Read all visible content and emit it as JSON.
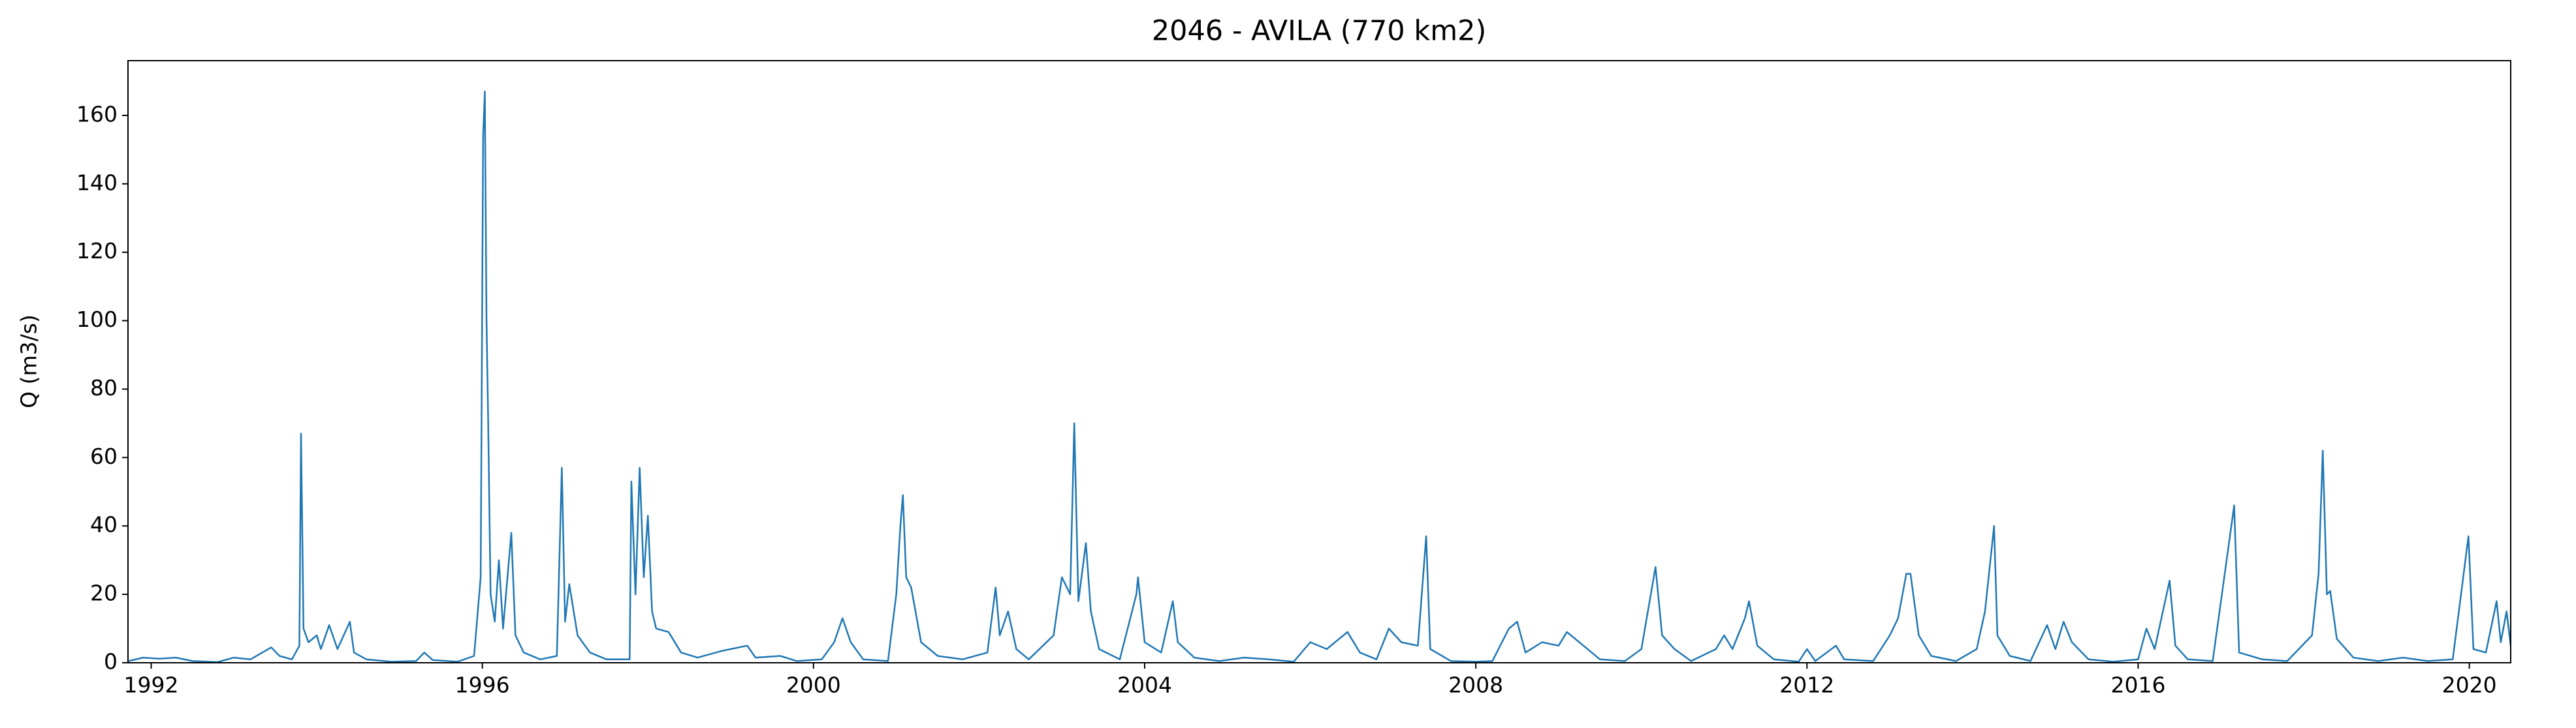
{
  "chart_data": {
    "type": "line",
    "title": "2046 - AVILA (770 km2)",
    "y_label": "Q (m3/s)",
    "color": "#1f77b4",
    "grid": false,
    "xlim": [
      1991.72,
      2020.5
    ],
    "xticks": [
      1992,
      1996,
      2000,
      2004,
      2008,
      2012,
      2016,
      2020
    ],
    "ylim": [
      0,
      176
    ],
    "yticks": [
      0,
      20,
      40,
      60,
      80,
      100,
      120,
      140,
      160
    ],
    "x": [
      1991.73,
      1991.9,
      1992.1,
      1992.3,
      1992.5,
      1992.8,
      1993.0,
      1993.2,
      1993.45,
      1993.55,
      1993.7,
      1993.79,
      1993.81,
      1993.84,
      1993.9,
      1994.0,
      1994.05,
      1994.15,
      1994.25,
      1994.4,
      1994.45,
      1994.6,
      1994.9,
      1995.2,
      1995.3,
      1995.4,
      1995.7,
      1995.9,
      1995.98,
      1996.01,
      1996.03,
      1996.05,
      1996.07,
      1996.1,
      1996.15,
      1996.2,
      1996.25,
      1996.35,
      1996.4,
      1996.5,
      1996.7,
      1996.9,
      1996.96,
      1997.0,
      1997.05,
      1997.15,
      1997.3,
      1997.5,
      1997.78,
      1997.8,
      1997.85,
      1997.9,
      1997.95,
      1998.0,
      1998.05,
      1998.1,
      1998.25,
      1998.4,
      1998.6,
      1998.9,
      1999.2,
      1999.3,
      1999.6,
      1999.8,
      2000.1,
      2000.25,
      2000.35,
      2000.45,
      2000.6,
      2000.9,
      2001.0,
      2001.05,
      2001.08,
      2001.12,
      2001.18,
      2001.3,
      2001.5,
      2001.8,
      2002.1,
      2002.2,
      2002.25,
      2002.35,
      2002.45,
      2002.6,
      2002.9,
      2003.0,
      2003.1,
      2003.15,
      2003.2,
      2003.29,
      2003.35,
      2003.45,
      2003.7,
      2003.9,
      2003.92,
      2004.0,
      2004.2,
      2004.34,
      2004.4,
      2004.6,
      2004.9,
      2005.2,
      2005.5,
      2005.8,
      2006.0,
      2006.2,
      2006.45,
      2006.6,
      2006.8,
      2006.95,
      2007.1,
      2007.3,
      2007.4,
      2007.45,
      2007.7,
      2008.0,
      2008.2,
      2008.4,
      2008.5,
      2008.6,
      2008.8,
      2009.0,
      2009.1,
      2009.3,
      2009.5,
      2009.8,
      2010.0,
      2010.17,
      2010.25,
      2010.4,
      2010.6,
      2010.9,
      2011.0,
      2011.1,
      2011.25,
      2011.3,
      2011.4,
      2011.6,
      2011.9,
      2012.0,
      2012.1,
      2012.35,
      2012.45,
      2012.8,
      2013.0,
      2013.1,
      2013.2,
      2013.25,
      2013.35,
      2013.5,
      2013.8,
      2014.05,
      2014.15,
      2014.26,
      2014.3,
      2014.45,
      2014.7,
      2014.9,
      2015.0,
      2015.1,
      2015.2,
      2015.4,
      2015.7,
      2016.0,
      2016.1,
      2016.2,
      2016.38,
      2016.45,
      2016.6,
      2016.9,
      2017.16,
      2017.22,
      2017.5,
      2017.8,
      2018.1,
      2018.18,
      2018.23,
      2018.28,
      2018.32,
      2018.4,
      2018.6,
      2018.9,
      2019.2,
      2019.5,
      2019.8,
      2019.99,
      2020.05,
      2020.2,
      2020.33,
      2020.38,
      2020.45,
      2020.5
    ],
    "values": [
      0.5,
      1.5,
      1.2,
      1.5,
      0.5,
      0.2,
      1.5,
      1.0,
      4.5,
      2,
      1,
      5,
      67,
      10,
      6,
      8,
      4,
      11,
      4,
      12,
      3,
      1,
      0.3,
      0.5,
      3,
      0.8,
      0.3,
      2,
      25,
      154,
      167,
      101,
      72,
      20,
      12,
      30,
      10,
      38,
      8,
      3,
      1,
      2,
      57,
      12,
      23,
      8,
      3,
      1,
      1,
      53,
      20,
      57,
      25,
      43,
      15,
      10,
      9,
      3,
      1.5,
      3.5,
      5,
      1.5,
      2,
      0.5,
      1,
      6,
      13,
      6,
      1,
      0.5,
      20,
      40,
      49,
      25,
      22,
      6,
      2,
      1,
      3,
      22,
      8,
      15,
      4,
      1,
      8,
      25,
      20,
      70,
      18,
      35,
      15,
      4,
      1,
      20,
      25,
      6,
      3,
      18,
      6,
      1.5,
      0.5,
      1.5,
      1,
      0.3,
      6,
      4,
      9,
      3,
      1,
      10,
      6,
      5,
      37,
      4,
      0.5,
      0.3,
      0.5,
      10,
      12,
      3,
      6,
      5,
      9,
      5,
      1,
      0.5,
      4,
      28,
      8,
      4,
      0.5,
      4,
      8,
      4,
      13,
      18,
      5,
      1,
      0.3,
      4,
      0.5,
      5,
      1,
      0.5,
      8,
      13,
      26,
      26,
      8,
      2,
      0.5,
      4,
      15,
      40,
      8,
      2,
      0.5,
      11,
      4,
      12,
      6,
      1,
      0.3,
      1,
      10,
      4,
      24,
      5,
      1,
      0.5,
      46,
      3,
      1,
      0.5,
      8,
      26,
      62,
      20,
      21,
      7,
      1.5,
      0.5,
      1.5,
      0.5,
      1,
      37,
      4,
      3,
      18,
      6,
      15,
      5
    ]
  }
}
